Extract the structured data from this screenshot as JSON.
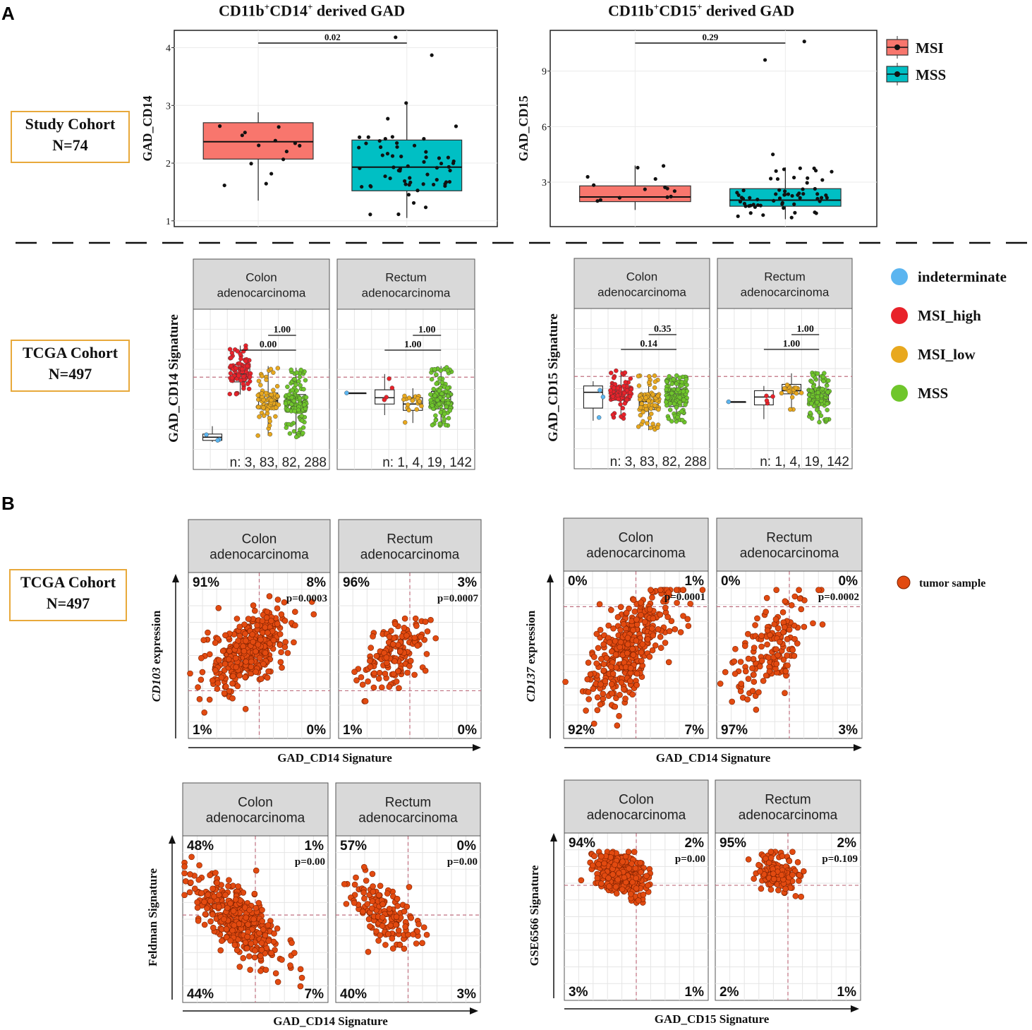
{
  "panels": {
    "a": "A",
    "b": "B"
  },
  "cohorts": {
    "study": {
      "line1": "Study Cohort",
      "line2": "N=74"
    },
    "tcga_a": {
      "line1": "TCGA Cohort",
      "line2": "N=497"
    },
    "tcga_b": {
      "line1": "TCGA Cohort",
      "line2": "N=497"
    }
  },
  "titles": {
    "cd14": {
      "main": "CD11b",
      "sup1": "+",
      "mid": "CD14",
      "sup2": "+",
      "tail": " derived GAD"
    },
    "cd15": {
      "main": "CD11b",
      "sup1": "+",
      "mid": "CD15",
      "sup2": "+",
      "tail": " derived GAD"
    }
  },
  "legend_study": [
    {
      "label": "MSI",
      "color": "#f8766d"
    },
    {
      "label": "MSS",
      "color": "#00bfc4"
    }
  ],
  "legend_tcga": [
    {
      "label": "indeterminate",
      "color": "#5bb5f0"
    },
    {
      "label": "MSI_high",
      "color": "#e8222a"
    },
    {
      "label": "MSI_low",
      "color": "#e8a81e"
    },
    {
      "label": "MSS",
      "color": "#6fc62b"
    }
  ],
  "legend_b": {
    "label": "tumor sample",
    "color": "#e24a10"
  },
  "strips": {
    "colon": [
      "Colon",
      "adenocarcinoma"
    ],
    "rectum": [
      "Rectum",
      "adenocarcinoma"
    ]
  },
  "chart_data": [
    {
      "id": "study_cd14",
      "type": "box",
      "ylabel": "GAD_CD14",
      "ylim": [
        0.9,
        4.3
      ],
      "yticks": [
        1,
        2,
        3,
        4
      ],
      "yticklabels": [
        "1",
        "2",
        "3",
        "4"
      ],
      "pvalue": "0.02",
      "groups": [
        {
          "name": "MSI",
          "color": "#f8766d",
          "q1": 2.07,
          "median": 2.37,
          "q3": 2.7,
          "min": 1.35,
          "max": 2.88,
          "n": 14
        },
        {
          "name": "MSS",
          "color": "#00bfc4",
          "q1": 1.52,
          "median": 1.93,
          "q3": 2.4,
          "min": 1.05,
          "max": 3.05,
          "n": 60
        }
      ],
      "outliers": [
        {
          "group": "MSS",
          "y": 4.18
        },
        {
          "group": "MSS",
          "y": 3.87
        }
      ]
    },
    {
      "id": "study_cd15",
      "type": "box",
      "ylabel": "GAD_CD15",
      "ylim": [
        0.6,
        11.2
      ],
      "yticks": [
        3,
        6,
        9
      ],
      "yticklabels": [
        "3",
        "6",
        "9"
      ],
      "pvalue": "0.29",
      "groups": [
        {
          "name": "MSI",
          "color": "#f8766d",
          "q1": 1.95,
          "median": 2.2,
          "q3": 2.8,
          "min": 1.5,
          "max": 3.9,
          "n": 14
        },
        {
          "name": "MSS",
          "color": "#00bfc4",
          "q1": 1.7,
          "median": 2.03,
          "q3": 2.65,
          "min": 1.0,
          "max": 3.8,
          "n": 60
        }
      ],
      "outliers": [
        {
          "group": "MSS",
          "y": 9.6
        },
        {
          "group": "MSS",
          "y": 10.6
        },
        {
          "group": "MSS",
          "y": 4.5
        }
      ]
    },
    {
      "id": "tcga_cd14",
      "type": "box",
      "ylabel": "GAD_CD14 Signature",
      "facets": [
        {
          "strip": "colon",
          "n_text": "n: 3, 83, 82, 288",
          "p_low": "0.00",
          "p_high": "1.00",
          "groups": [
            {
              "name": "indeterminate",
              "q1": -1.55,
              "median": -1.45,
              "q3": -1.35,
              "min": -1.6,
              "max": -1.1,
              "n": 3
            },
            {
              "name": "MSI_high",
              "q1": 0.3,
              "median": 0.55,
              "q3": 0.85,
              "min": -0.1,
              "max": 1.45,
              "n": 83
            },
            {
              "name": "MSI_low",
              "q1": -0.55,
              "median": -0.3,
              "q3": -0.05,
              "min": -1.4,
              "max": 0.8,
              "n": 82
            },
            {
              "name": "MSS",
              "q1": -0.65,
              "median": -0.4,
              "q3": -0.1,
              "min": -1.45,
              "max": 0.75,
              "n": 288
            }
          ]
        },
        {
          "strip": "rectum",
          "n_text": "n: 1, 4, 19, 142",
          "p_low": "1.00",
          "p_high": "1.00",
          "groups": [
            {
              "name": "indeterminate",
              "q1": -0.05,
              "median": -0.05,
              "q3": -0.05,
              "min": -0.05,
              "max": -0.05,
              "n": 1
            },
            {
              "name": "MSI_high",
              "q1": -0.4,
              "median": -0.2,
              "q3": 0.05,
              "min": -0.75,
              "max": 0.55,
              "n": 4
            },
            {
              "name": "MSI_low",
              "q1": -0.6,
              "median": -0.4,
              "q3": -0.2,
              "min": -1.0,
              "max": 0.1,
              "n": 19
            },
            {
              "name": "MSS",
              "q1": -0.55,
              "median": -0.3,
              "q3": 0.0,
              "min": -1.1,
              "max": 0.8,
              "n": 142
            }
          ]
        }
      ]
    },
    {
      "id": "tcga_cd15",
      "type": "box",
      "ylabel": "GAD_CD15 Signature",
      "facets": [
        {
          "strip": "colon",
          "n_text": "n: 3, 83, 82, 288",
          "p_low": "0.14",
          "p_high": "0.35",
          "groups": [
            {
              "name": "indeterminate",
              "q1": -0.55,
              "median": -0.05,
              "q3": 0.15,
              "min": -0.95,
              "max": 0.3,
              "n": 3
            },
            {
              "name": "MSI_high",
              "q1": -0.3,
              "median": -0.1,
              "q3": 0.15,
              "min": -0.9,
              "max": 0.65,
              "n": 83
            },
            {
              "name": "MSI_low",
              "q1": -0.6,
              "median": -0.35,
              "q3": -0.1,
              "min": -1.25,
              "max": 0.5,
              "n": 82
            },
            {
              "name": "MSS",
              "q1": -0.5,
              "median": -0.25,
              "q3": 0.05,
              "min": -1.0,
              "max": 0.5,
              "n": 288
            }
          ]
        },
        {
          "strip": "rectum",
          "n_text": "n: 1, 4, 19, 142",
          "p_low": "1.00",
          "p_high": "1.00",
          "groups": [
            {
              "name": "indeterminate",
              "q1": -0.35,
              "median": -0.35,
              "q3": -0.35,
              "min": -0.35,
              "max": -0.35,
              "n": 1
            },
            {
              "name": "MSI_high",
              "q1": -0.45,
              "median": -0.2,
              "q3": 0.0,
              "min": -0.9,
              "max": 0.15,
              "n": 4
            },
            {
              "name": "MSI_low",
              "q1": -0.1,
              "median": 0.0,
              "q3": 0.2,
              "min": -0.6,
              "max": 0.55,
              "n": 19
            },
            {
              "name": "MSS",
              "q1": -0.45,
              "median": -0.2,
              "q3": 0.05,
              "min": -1.0,
              "max": 0.6,
              "n": 142
            }
          ]
        }
      ]
    },
    {
      "id": "scatter_cd103",
      "type": "scatter",
      "xlabel": "GAD_CD14 Signature",
      "ylabel_italic": "CD103",
      "ylabel_rest": " expression",
      "facets": [
        {
          "strip": "colon",
          "quadrants": {
            "tl": "91%",
            "tr": "8%",
            "bl": "1%",
            "br": "0%"
          },
          "p": "p=0.0003",
          "n": 380,
          "r": 0.55,
          "cx": -0.3,
          "cy": 0.1,
          "sx": 0.55,
          "sy": 0.5
        },
        {
          "strip": "rectum",
          "quadrants": {
            "tl": "96%",
            "tr": "3%",
            "bl": "1%",
            "br": "0%"
          },
          "p": "p=0.0007",
          "n": 150,
          "r": 0.5,
          "cx": -0.4,
          "cy": 0.1,
          "sx": 0.45,
          "sy": 0.4
        }
      ]
    },
    {
      "id": "scatter_cd137",
      "type": "scatter",
      "xlabel": "GAD_CD14 Signature",
      "ylabel_italic": "CD137",
      "ylabel_rest": " expression",
      "facets": [
        {
          "strip": "colon",
          "quadrants": {
            "tl": "0%",
            "tr": "1%",
            "bl": "92%",
            "br": "7%"
          },
          "p": "p=0.0001",
          "n": 380,
          "r": 0.65,
          "cx": -0.2,
          "cy": 0.15,
          "sx": 0.6,
          "sy": 0.7
        },
        {
          "strip": "rectum",
          "quadrants": {
            "tl": "0%",
            "tr": "0%",
            "bl": "97%",
            "br": "3%"
          },
          "p": "p=0.0002",
          "n": 150,
          "r": 0.6,
          "cx": -0.5,
          "cy": 0.2,
          "sx": 0.55,
          "sy": 0.65
        }
      ]
    },
    {
      "id": "scatter_feldman",
      "type": "scatter",
      "xlabel": "GAD_CD14 Signature",
      "ylabel": "Feldman Signature",
      "facets": [
        {
          "strip": "colon",
          "quadrants": {
            "tl": "48%",
            "tr": "1%",
            "bl": "44%",
            "br": "7%"
          },
          "p": "p=0.00",
          "n": 380,
          "r": -0.7,
          "cx": -0.5,
          "cy": 0.0,
          "sx": 0.6,
          "sy": 0.55
        },
        {
          "strip": "rectum",
          "quadrants": {
            "tl": "57%",
            "tr": "0%",
            "bl": "40%",
            "br": "3%"
          },
          "p": "p=0.00",
          "n": 150,
          "r": -0.65,
          "cx": -0.6,
          "cy": 0.05,
          "sx": 0.45,
          "sy": 0.45
        }
      ]
    },
    {
      "id": "scatter_gse6566",
      "type": "scatter",
      "xlabel": "GAD_CD15 Signature",
      "ylabel": "GSE6566 Signature",
      "facets": [
        {
          "strip": "colon",
          "quadrants": {
            "tl": "94%",
            "tr": "2%",
            "bl": "3%",
            "br": "1%"
          },
          "p": "p=0.00",
          "n": 380,
          "r": -0.3,
          "cx": -0.45,
          "cy": 1.05,
          "sx": 0.35,
          "sy": 0.25
        },
        {
          "strip": "rectum",
          "quadrants": {
            "tl": "95%",
            "tr": "2%",
            "bl": "2%",
            "br": "1%"
          },
          "p": "p=0.109",
          "n": 150,
          "r": -0.2,
          "cx": -0.25,
          "cy": 1.05,
          "sx": 0.3,
          "sy": 0.22
        }
      ]
    }
  ]
}
